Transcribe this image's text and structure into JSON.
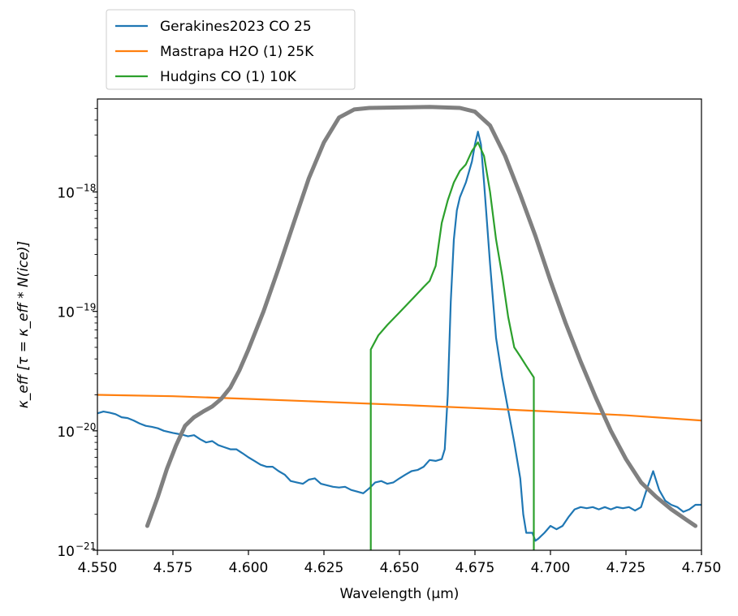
{
  "chart_data": {
    "type": "line",
    "title": "",
    "xlabel": "Wavelength (μm)",
    "ylabel": "κ_eff [τ = κ_eff * N(ice)]",
    "xlim": [
      4.55,
      4.75
    ],
    "ylim": [
      1e-21,
      6e-18
    ],
    "yscale": "log",
    "grid": false,
    "legend_position": "above-left",
    "x_ticks": [
      "4.550",
      "4.575",
      "4.600",
      "4.625",
      "4.650",
      "4.675",
      "4.700",
      "4.725",
      "4.750"
    ],
    "y_ticks": [
      {
        "value": 1e-21,
        "base": "10",
        "exp": "−21"
      },
      {
        "value": 1e-20,
        "base": "10",
        "exp": "−20"
      },
      {
        "value": 1e-19,
        "base": "10",
        "exp": "−19"
      },
      {
        "value": 1e-18,
        "base": "10",
        "exp": "−18"
      }
    ],
    "series": [
      {
        "name": "Gerakines2023 CO 25",
        "color": "#1f77b4",
        "points": [
          [
            4.55,
            1.4e-20
          ],
          [
            4.552,
            1.45e-20
          ],
          [
            4.554,
            1.42e-20
          ],
          [
            4.556,
            1.38e-20
          ],
          [
            4.558,
            1.3e-20
          ],
          [
            4.56,
            1.28e-20
          ],
          [
            4.562,
            1.22e-20
          ],
          [
            4.564,
            1.15e-20
          ],
          [
            4.566,
            1.1e-20
          ],
          [
            4.568,
            1.08e-20
          ],
          [
            4.57,
            1.05e-20
          ],
          [
            4.572,
            1e-20
          ],
          [
            4.575,
            9.6e-21
          ],
          [
            4.578,
            9.3e-21
          ],
          [
            4.58,
            9e-21
          ],
          [
            4.582,
            9.2e-21
          ],
          [
            4.584,
            8.5e-21
          ],
          [
            4.586,
            8e-21
          ],
          [
            4.588,
            8.2e-21
          ],
          [
            4.59,
            7.6e-21
          ],
          [
            4.592,
            7.3e-21
          ],
          [
            4.594,
            7e-21
          ],
          [
            4.596,
            7e-21
          ],
          [
            4.598,
            6.5e-21
          ],
          [
            4.6,
            6e-21
          ],
          [
            4.602,
            5.6e-21
          ],
          [
            4.604,
            5.2e-21
          ],
          [
            4.606,
            5e-21
          ],
          [
            4.608,
            5e-21
          ],
          [
            4.61,
            4.6e-21
          ],
          [
            4.612,
            4.3e-21
          ],
          [
            4.614,
            3.8e-21
          ],
          [
            4.616,
            3.7e-21
          ],
          [
            4.618,
            3.6e-21
          ],
          [
            4.62,
            3.9e-21
          ],
          [
            4.622,
            4e-21
          ],
          [
            4.624,
            3.6e-21
          ],
          [
            4.626,
            3.5e-21
          ],
          [
            4.628,
            3.4e-21
          ],
          [
            4.63,
            3.35e-21
          ],
          [
            4.632,
            3.4e-21
          ],
          [
            4.634,
            3.2e-21
          ],
          [
            4.636,
            3.1e-21
          ],
          [
            4.638,
            3e-21
          ],
          [
            4.64,
            3.3e-21
          ],
          [
            4.642,
            3.7e-21
          ],
          [
            4.644,
            3.8e-21
          ],
          [
            4.646,
            3.6e-21
          ],
          [
            4.648,
            3.7e-21
          ],
          [
            4.65,
            4e-21
          ],
          [
            4.652,
            4.3e-21
          ],
          [
            4.654,
            4.6e-21
          ],
          [
            4.656,
            4.7e-21
          ],
          [
            4.658,
            5e-21
          ],
          [
            4.66,
            5.7e-21
          ],
          [
            4.662,
            5.6e-21
          ],
          [
            4.664,
            5.8e-21
          ],
          [
            4.665,
            7e-21
          ],
          [
            4.666,
            2e-20
          ],
          [
            4.667,
            1.2e-19
          ],
          [
            4.668,
            4e-19
          ],
          [
            4.669,
            7e-19
          ],
          [
            4.67,
            9e-19
          ],
          [
            4.672,
            1.2e-18
          ],
          [
            4.674,
            1.8e-18
          ],
          [
            4.675,
            2.5e-18
          ],
          [
            4.676,
            3.2e-18
          ],
          [
            4.677,
            2.5e-18
          ],
          [
            4.678,
            1.2e-18
          ],
          [
            4.68,
            2.5e-19
          ],
          [
            4.682,
            6e-20
          ],
          [
            4.684,
            2.8e-20
          ],
          [
            4.686,
            1.5e-20
          ],
          [
            4.688,
            8e-21
          ],
          [
            4.69,
            4e-21
          ],
          [
            4.691,
            2e-21
          ],
          [
            4.692,
            1.4e-21
          ],
          [
            4.694,
            1.4e-21
          ],
          [
            4.695,
            1.2e-21
          ],
          [
            4.696,
            1.25e-21
          ],
          [
            4.698,
            1.4e-21
          ],
          [
            4.7,
            1.6e-21
          ],
          [
            4.702,
            1.5e-21
          ],
          [
            4.704,
            1.6e-21
          ],
          [
            4.706,
            1.9e-21
          ],
          [
            4.708,
            2.2e-21
          ],
          [
            4.71,
            2.3e-21
          ],
          [
            4.712,
            2.25e-21
          ],
          [
            4.714,
            2.3e-21
          ],
          [
            4.716,
            2.2e-21
          ],
          [
            4.718,
            2.3e-21
          ],
          [
            4.72,
            2.2e-21
          ],
          [
            4.722,
            2.3e-21
          ],
          [
            4.724,
            2.25e-21
          ],
          [
            4.726,
            2.3e-21
          ],
          [
            4.728,
            2.15e-21
          ],
          [
            4.73,
            2.3e-21
          ],
          [
            4.732,
            3.3e-21
          ],
          [
            4.734,
            4.6e-21
          ],
          [
            4.736,
            3.2e-21
          ],
          [
            4.738,
            2.6e-21
          ],
          [
            4.74,
            2.4e-21
          ],
          [
            4.742,
            2.3e-21
          ],
          [
            4.744,
            2.1e-21
          ],
          [
            4.746,
            2.2e-21
          ],
          [
            4.748,
            2.4e-21
          ],
          [
            4.75,
            2.4e-21
          ]
        ]
      },
      {
        "name": "Mastrapa H2O (1) 25K",
        "color": "#ff7f0e",
        "points": [
          [
            4.55,
            2e-20
          ],
          [
            4.575,
            1.95e-20
          ],
          [
            4.6,
            1.85e-20
          ],
          [
            4.625,
            1.75e-20
          ],
          [
            4.65,
            1.65e-20
          ],
          [
            4.675,
            1.55e-20
          ],
          [
            4.7,
            1.45e-20
          ],
          [
            4.725,
            1.35e-20
          ],
          [
            4.75,
            1.22e-20
          ]
        ]
      },
      {
        "name": "Hudgins CO (1) 10K",
        "color": "#2ca02c",
        "points": [
          [
            4.6405,
            1e-21
          ],
          [
            4.6405,
            4.8e-20
          ],
          [
            4.643,
            6.3e-20
          ],
          [
            4.646,
            7.7e-20
          ],
          [
            4.65,
            9.8e-20
          ],
          [
            4.654,
            1.25e-19
          ],
          [
            4.658,
            1.6e-19
          ],
          [
            4.66,
            1.8e-19
          ],
          [
            4.662,
            2.4e-19
          ],
          [
            4.664,
            5.5e-19
          ],
          [
            4.666,
            8.5e-19
          ],
          [
            4.668,
            1.2e-18
          ],
          [
            4.67,
            1.5e-18
          ],
          [
            4.672,
            1.7e-18
          ],
          [
            4.674,
            2.2e-18
          ],
          [
            4.676,
            2.6e-18
          ],
          [
            4.678,
            2e-18
          ],
          [
            4.68,
            1e-18
          ],
          [
            4.682,
            4e-19
          ],
          [
            4.684,
            2e-19
          ],
          [
            4.686,
            9e-20
          ],
          [
            4.688,
            5e-20
          ],
          [
            4.69,
            4.2e-20
          ],
          [
            4.692,
            3.5e-20
          ],
          [
            4.6945,
            2.8e-20
          ],
          [
            4.6945,
            1e-21
          ]
        ]
      },
      {
        "name": "",
        "color": "#808080",
        "points": [
          [
            4.5665,
            1.6e-21
          ],
          [
            4.57,
            2.8e-21
          ],
          [
            4.573,
            4.8e-21
          ],
          [
            4.576,
            7.5e-21
          ],
          [
            4.579,
            1.1e-20
          ],
          [
            4.582,
            1.3e-20
          ],
          [
            4.585,
            1.45e-20
          ],
          [
            4.588,
            1.6e-20
          ],
          [
            4.591,
            1.85e-20
          ],
          [
            4.594,
            2.3e-20
          ],
          [
            4.597,
            3.2e-20
          ],
          [
            4.6,
            4.8e-20
          ],
          [
            4.605,
            1e-19
          ],
          [
            4.61,
            2.3e-19
          ],
          [
            4.615,
            5.5e-19
          ],
          [
            4.62,
            1.3e-18
          ],
          [
            4.625,
            2.6e-18
          ],
          [
            4.63,
            4.2e-18
          ],
          [
            4.635,
            4.9e-18
          ],
          [
            4.64,
            5.05e-18
          ],
          [
            4.65,
            5.1e-18
          ],
          [
            4.66,
            5.15e-18
          ],
          [
            4.67,
            5.05e-18
          ],
          [
            4.675,
            4.7e-18
          ],
          [
            4.68,
            3.6e-18
          ],
          [
            4.685,
            2e-18
          ],
          [
            4.69,
            9.5e-19
          ],
          [
            4.695,
            4.3e-19
          ],
          [
            4.7,
            1.8e-19
          ],
          [
            4.705,
            8e-20
          ],
          [
            4.71,
            3.8e-20
          ],
          [
            4.715,
            1.9e-20
          ],
          [
            4.72,
            1e-20
          ],
          [
            4.725,
            5.8e-21
          ],
          [
            4.73,
            3.7e-21
          ],
          [
            4.735,
            2.8e-21
          ],
          [
            4.74,
            2.2e-21
          ],
          [
            4.745,
            1.8e-21
          ],
          [
            4.748,
            1.6e-21
          ]
        ]
      }
    ]
  }
}
